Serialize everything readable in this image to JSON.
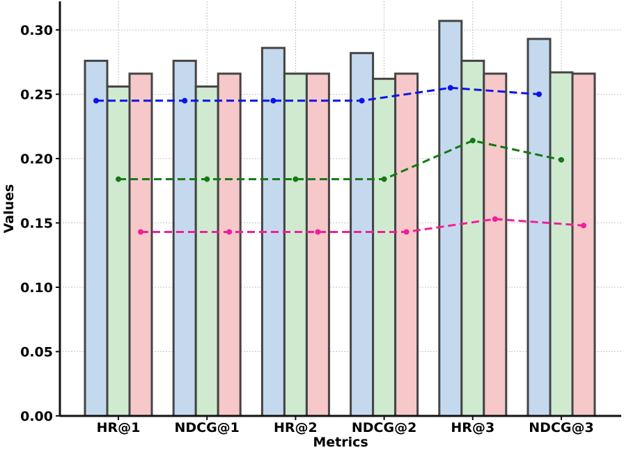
{
  "chart_data": {
    "type": "bar",
    "title": "",
    "xlabel": "Metrics",
    "ylabel": "Values",
    "ylim": [
      0,
      0.32
    ],
    "yticks": [
      "0.00",
      "0.05",
      "0.10",
      "0.15",
      "0.20",
      "0.25",
      "0.30"
    ],
    "ytick_values": [
      0,
      0.05,
      0.1,
      0.15,
      0.2,
      0.25,
      0.3
    ],
    "grid": true,
    "categories": [
      "HR@1",
      "NDCG@1",
      "HR@2",
      "NDCG@2",
      "HR@3",
      "NDCG@3"
    ],
    "bar_series": [
      {
        "name": "series-blue",
        "color": "#c5d9ee",
        "values": [
          0.276,
          0.276,
          0.286,
          0.282,
          0.307,
          0.293
        ]
      },
      {
        "name": "series-green",
        "color": "#cfeacf",
        "values": [
          0.256,
          0.256,
          0.266,
          0.262,
          0.276,
          0.267
        ]
      },
      {
        "name": "series-red",
        "color": "#f6c8c9",
        "values": [
          0.266,
          0.266,
          0.266,
          0.266,
          0.266,
          0.266
        ]
      }
    ],
    "line_series": [
      {
        "name": "line-blue",
        "color": "#0a14e6",
        "bar_index": 0,
        "values": [
          0.245,
          0.245,
          0.245,
          0.245,
          0.255,
          0.25
        ]
      },
      {
        "name": "line-green",
        "color": "#147814",
        "bar_index": 1,
        "values": [
          0.184,
          0.184,
          0.184,
          0.184,
          0.214,
          0.199
        ]
      },
      {
        "name": "line-pink",
        "color": "#ef1f9a",
        "bar_index": 2,
        "values": [
          0.143,
          0.143,
          0.143,
          0.143,
          0.153,
          0.148
        ]
      }
    ]
  }
}
